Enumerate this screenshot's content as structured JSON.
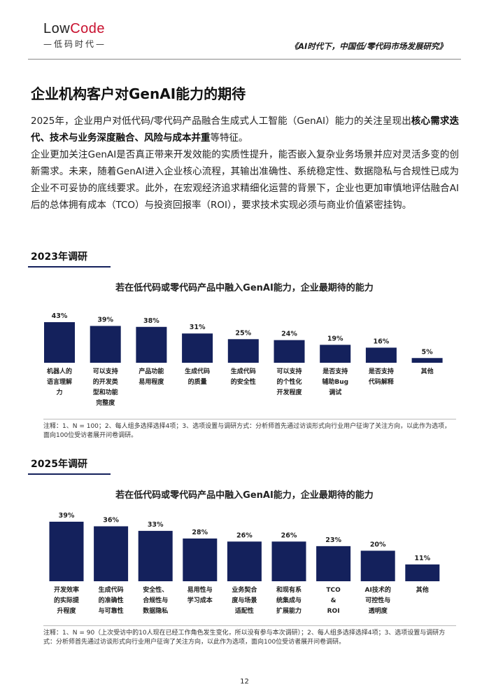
{
  "header": {
    "logo_low": "Low",
    "logo_code": "Code",
    "logo_sub": "—低码时代—",
    "report_title": "《AI时代下，中国低/零代码市场发展研究》"
  },
  "page_title": "企业机构客户对GenAI能力的期待",
  "paragraph1": {
    "lead": "2025年，企业用户对低代码/零代码产品融合生成式人工智能（GenAI）能力的关注呈现出",
    "bold": "核心需求迭代、技术与业务深度融合、风险与成本并重",
    "tail": "等特征。"
  },
  "paragraph2": "企业更加关注GenAI是否真正带来开发效能的实质性提升，能否嵌入复杂业务场景并应对灵活多变的创新需求。未来，随着GenAI进入企业核心流程，其输出准确性、系统稳定性、数据隐私与合规性已成为企业不可妥协的底线要求。此外，在宏观经济追求精细化运营的背景下，企业也更加审慎地评估融合AI后的总体拥有成本（TCO）与投资回报率（ROI），要求技术实现必须与商业价值紧密挂钩。",
  "section_2023": "2023年调研",
  "section_2025": "2025年调研",
  "colors": {
    "bar": "#14215c",
    "accent": "#c8102e"
  },
  "chart_data": [
    {
      "type": "bar",
      "title": "若在低代码或零代码产品中融入GenAI能力，企业最期待的能力",
      "categories": [
        "机器人的语言理解能力",
        "可以支持的开发类型和功能完整度",
        "产品功能易用程度",
        "生成代码的质量",
        "生成代码的安全性",
        "可以支持的个性化开发程度",
        "是否支持辅助Bug调试",
        "是否支持代码解释",
        "其他"
      ],
      "category_lines": [
        [
          "机器人的",
          "语言理解",
          "力"
        ],
        [
          "可以支持",
          "的开发类",
          "型和功能",
          "完整度"
        ],
        [
          "产品功能",
          "易用程度"
        ],
        [
          "生成代码",
          "的质量"
        ],
        [
          "生成代码",
          "的安全性"
        ],
        [
          "可以支持",
          "的个性化",
          "开发程度"
        ],
        [
          "是否支持",
          "辅助Bug",
          "调试"
        ],
        [
          "是否支持",
          "代码解释"
        ],
        [
          "其他"
        ]
      ],
      "values": [
        43,
        39,
        38,
        31,
        25,
        24,
        19,
        16,
        5
      ],
      "value_labels": [
        "43%",
        "39%",
        "38%",
        "31%",
        "25%",
        "24%",
        "19%",
        "16%",
        "5%"
      ],
      "unit": "%",
      "note": "注释：1、N = 100；2、每人组多选择选择4项；3、选项设置与调研方式：分析师首先通过访谈形式向行业用户征询了关注方向，以此作为选项，面向100位受访者展开问卷调研。"
    },
    {
      "type": "bar",
      "title": "若在低代码或零代码产品中融入GenAI能力，企业最期待的能力",
      "categories": [
        "开发效率的实际提升程度",
        "生成代码的准确性与可靠性",
        "安全性、合规性与数据隐私",
        "易用性与学习成本",
        "业务契合度与场景适配性",
        "和现有系统集成与扩展能力",
        "TCO & ROI",
        "AI技术的可控性与透明度",
        "其他"
      ],
      "category_lines": [
        [
          "开发效率",
          "的实际提",
          "升程度"
        ],
        [
          "生成代码",
          "的准确性",
          "与可靠性"
        ],
        [
          "安全性、",
          "合规性与",
          "数据隐私"
        ],
        [
          "易用性与",
          "学习成本"
        ],
        [
          "业务契合",
          "度与场景",
          "适配性"
        ],
        [
          "和现有系",
          "统集成与",
          "扩展能力"
        ],
        [
          "TCO",
          "&",
          "ROI"
        ],
        [
          "AI技术的",
          "可控性与",
          "透明度"
        ],
        [
          "其他"
        ]
      ],
      "values": [
        39,
        36,
        33,
        28,
        26,
        26,
        23,
        20,
        11
      ],
      "value_labels": [
        "39%",
        "36%",
        "33%",
        "28%",
        "26%",
        "26%",
        "23%",
        "20%",
        "11%"
      ],
      "unit": "%",
      "note": "注释：1、N = 90（上次受访中的10人现在已经工作角色发生变化，所以没有参与本次调研）；2、每人组多选择选择4项；3、选项设置与调研方式：分析师首先通过访谈形式向行业用户征询了关注方向，以此作为选项，面向100位受访者展开问卷调研。"
    }
  ],
  "page_number": "12"
}
